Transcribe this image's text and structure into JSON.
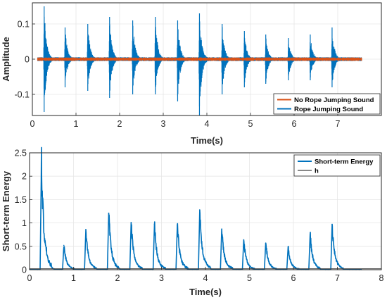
{
  "colors": {
    "rope": "#0072BD",
    "norope": "#D95319",
    "energy": "#0072BD",
    "threshold": "#404040",
    "grid": "#e6e6e6",
    "axis": "#262626"
  },
  "chart_data": [
    {
      "type": "line",
      "xlabel": "Time(s)",
      "ylabel": "Amplitude",
      "xlim": [
        0,
        8
      ],
      "ylim": [
        -0.16,
        0.16
      ],
      "xticks": [
        0,
        1,
        2,
        3,
        4,
        5,
        6,
        7
      ],
      "yticks": [
        -0.1,
        0,
        0.1
      ],
      "ytick_labels": [
        "-0.1",
        "0",
        "0.1"
      ],
      "grid": true,
      "legend_position": "bottom-right",
      "legend": [
        "No Rope Jumping Sound",
        "Rope Jumping Sound"
      ],
      "signal_end_s": 7.55,
      "series": [
        {
          "name": "Rope Jumping Sound",
          "bursts": [
            {
              "t": 0.27,
              "max": 0.15,
              "min": -0.15
            },
            {
              "t": 0.75,
              "max": 0.09,
              "min": -0.08
            },
            {
              "t": 1.27,
              "max": 0.1,
              "min": -0.09
            },
            {
              "t": 1.77,
              "max": 0.12,
              "min": -0.11
            },
            {
              "t": 2.3,
              "max": 0.11,
              "min": -0.1
            },
            {
              "t": 2.82,
              "max": 0.12,
              "min": -0.1
            },
            {
              "t": 3.33,
              "max": 0.11,
              "min": -0.12
            },
            {
              "t": 3.83,
              "max": 0.13,
              "min": -0.16
            },
            {
              "t": 4.35,
              "max": 0.1,
              "min": -0.1
            },
            {
              "t": 4.86,
              "max": 0.08,
              "min": -0.08
            },
            {
              "t": 5.35,
              "max": 0.07,
              "min": -0.07
            },
            {
              "t": 5.87,
              "max": 0.06,
              "min": -0.06
            },
            {
              "t": 6.37,
              "max": 0.07,
              "min": -0.06
            },
            {
              "t": 6.87,
              "max": 0.09,
              "min": -0.08
            }
          ]
        },
        {
          "name": "No Rope Jumping Sound",
          "amplitude": 0.005
        }
      ]
    },
    {
      "type": "line",
      "xlabel": "Time(s)",
      "ylabel": "Short-term Energy",
      "xlim": [
        0,
        8
      ],
      "ylim": [
        0,
        2.5
      ],
      "xticks": [
        0,
        1,
        2,
        3,
        4,
        5,
        6,
        7,
        8
      ],
      "yticks": [
        0,
        0.5,
        1,
        1.5,
        2,
        2.5
      ],
      "ytick_labels": [
        "0",
        "0.5",
        "1",
        "1.5",
        "2",
        "2.5"
      ],
      "grid": true,
      "legend_position": "top-right",
      "legend": [
        "Short-term Energy",
        "h"
      ],
      "series": [
        {
          "name": "Short-term Energy",
          "peaks": [
            {
              "t": 0.27,
              "v": 2.28
            },
            {
              "t": 0.78,
              "v": 0.52
            },
            {
              "t": 1.28,
              "v": 0.86
            },
            {
              "t": 1.8,
              "v": 1.21
            },
            {
              "t": 2.31,
              "v": 1.01
            },
            {
              "t": 2.84,
              "v": 0.97
            },
            {
              "t": 3.36,
              "v": 0.96
            },
            {
              "t": 3.87,
              "v": 1.28
            },
            {
              "t": 4.37,
              "v": 0.87
            },
            {
              "t": 4.87,
              "v": 0.64
            },
            {
              "t": 5.37,
              "v": 0.57
            },
            {
              "t": 5.88,
              "v": 0.49
            },
            {
              "t": 6.38,
              "v": 0.76
            },
            {
              "t": 6.88,
              "v": 0.97
            }
          ],
          "signal_end_s": 7.55
        },
        {
          "name": "h",
          "value": 0.02
        }
      ]
    }
  ]
}
